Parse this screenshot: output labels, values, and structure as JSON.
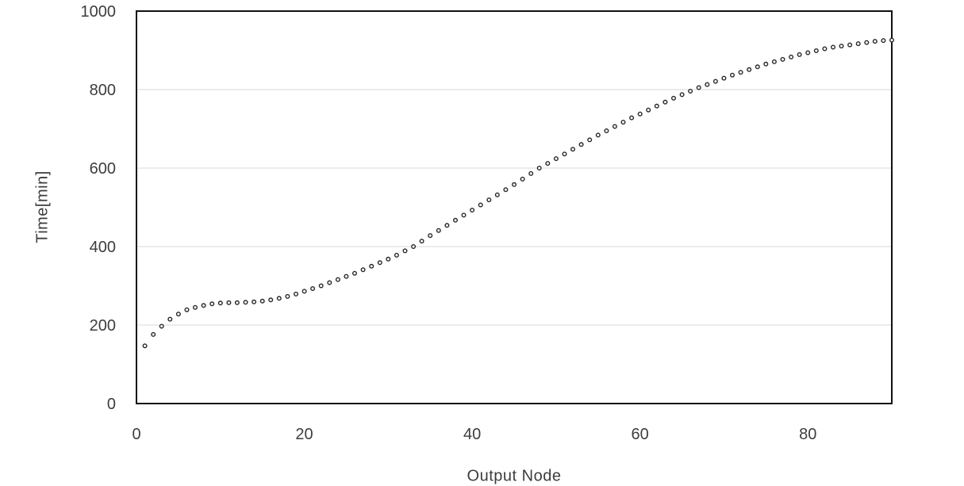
{
  "chart_data": {
    "type": "scatter",
    "title": "",
    "xlabel": "Output Node",
    "ylabel": "Time[min]",
    "xlim": [
      0,
      90
    ],
    "ylim": [
      0,
      1000
    ],
    "x_ticks": [
      0,
      20,
      40,
      60,
      80
    ],
    "y_ticks": [
      0,
      200,
      400,
      600,
      800,
      1000
    ],
    "grid": "horizontal",
    "legend": "none",
    "marker": "open-circle",
    "x": [
      1,
      2,
      3,
      4,
      5,
      6,
      7,
      8,
      9,
      10,
      11,
      12,
      13,
      14,
      15,
      16,
      17,
      18,
      19,
      20,
      21,
      22,
      23,
      24,
      25,
      26,
      27,
      28,
      29,
      30,
      31,
      32,
      33,
      34,
      35,
      36,
      37,
      38,
      39,
      40,
      41,
      42,
      43,
      44,
      45,
      46,
      47,
      48,
      49,
      50,
      51,
      52,
      53,
      54,
      55,
      56,
      57,
      58,
      59,
      60,
      61,
      62,
      63,
      64,
      65,
      66,
      67,
      68,
      69,
      70,
      71,
      72,
      73,
      74,
      75,
      76,
      77,
      78,
      79,
      80,
      81,
      82,
      83,
      84,
      85,
      86,
      87,
      88,
      89,
      90
    ],
    "values": [
      147,
      176,
      197,
      215,
      228,
      239,
      245,
      250,
      254,
      256,
      257,
      257,
      258,
      259,
      261,
      264,
      268,
      273,
      279,
      286,
      293,
      300,
      308,
      316,
      324,
      332,
      341,
      350,
      359,
      368,
      378,
      389,
      400,
      414,
      428,
      441,
      454,
      467,
      480,
      493,
      506,
      519,
      532,
      545,
      558,
      572,
      586,
      600,
      612,
      624,
      636,
      648,
      660,
      672,
      684,
      695,
      706,
      717,
      728,
      738,
      748,
      758,
      768,
      778,
      787,
      796,
      805,
      813,
      821,
      829,
      837,
      844,
      851,
      858,
      865,
      871,
      877,
      883,
      889,
      894,
      899,
      904,
      908,
      911,
      914,
      917,
      920,
      923,
      925,
      926
    ],
    "colors": {
      "marker_stroke": "#262626",
      "marker_fill": "#ffffff",
      "gridline": "#d9d9d9",
      "axis_border": "#111111",
      "tick_text": "#3d3d3d",
      "background": "#ffffff"
    }
  }
}
